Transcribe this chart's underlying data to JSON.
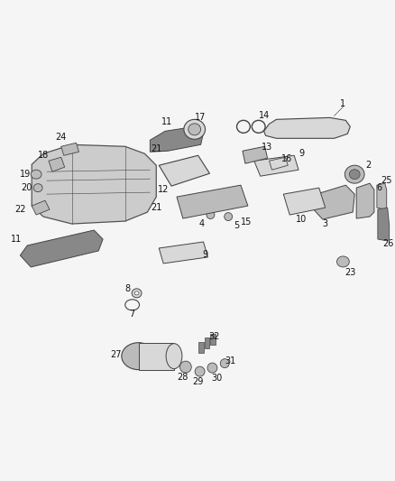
{
  "bg": "#f5f5f5",
  "fig_w": 4.38,
  "fig_h": 5.33,
  "dpi": 100,
  "lc": "#555555",
  "ec": "#444444",
  "fc_light": "#d8d8d8",
  "fc_mid": "#bbbbbb",
  "fc_dark": "#888888",
  "label_fs": 7.0
}
